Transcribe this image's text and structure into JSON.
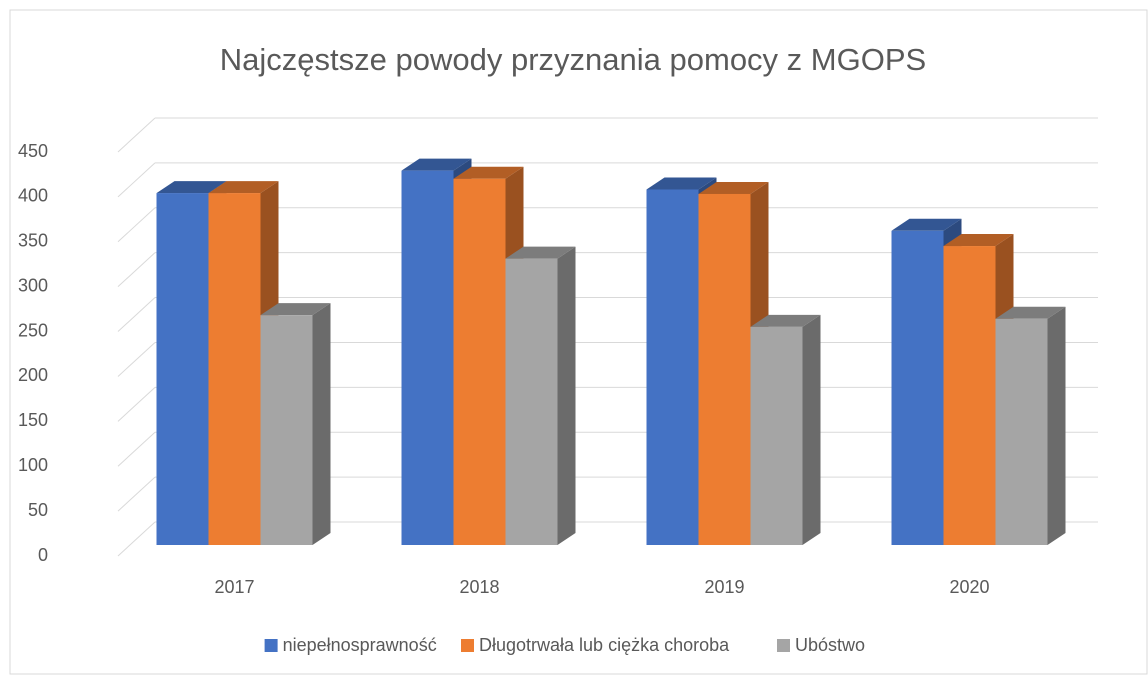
{
  "chart_data": {
    "type": "bar3d",
    "title": "Najczęstsze powody przyznania pomocy z MGOPS",
    "categories": [
      "2017",
      "2018",
      "2019",
      "2020"
    ],
    "series": [
      {
        "name": "niepełnosprawność",
        "color": "#4472c4",
        "values": [
          392,
          417,
          396,
          350
        ]
      },
      {
        "name": "Długotrwała lub ciężka choroba",
        "color": "#ed7d31",
        "values": [
          392,
          408,
          391,
          333
        ]
      },
      {
        "name": "Ubóstwo",
        "color": "#a5a5a5",
        "values": [
          256,
          319,
          243,
          252
        ]
      }
    ],
    "ylim": [
      0,
      450
    ],
    "yticks": [
      0,
      50,
      100,
      150,
      200,
      250,
      300,
      350,
      400,
      450
    ],
    "grid": true,
    "legend": "bottom"
  }
}
